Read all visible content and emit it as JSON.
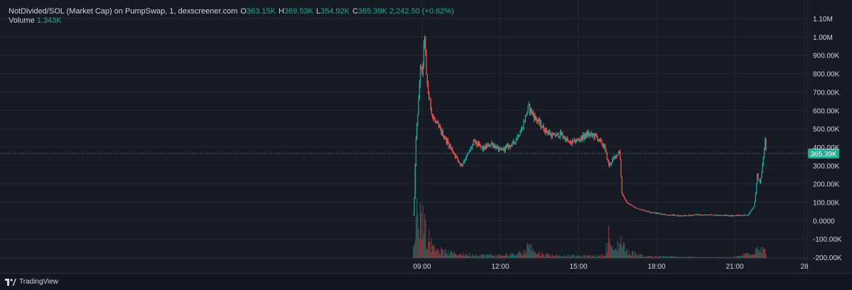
{
  "legend": {
    "title": "NotDivided/SOL (Market Cap) on PumpSwap, 1, dexscreener.com",
    "o_key": "O",
    "o_val": "363.15K",
    "h_key": "H",
    "h_val": "369.53K",
    "l_key": "L",
    "l_val": "354.92K",
    "c_key": "C",
    "c_val": "365.39K",
    "change": "2,242.50 (+0.62%)",
    "volume_label": "Volume",
    "volume_val": "1.343K"
  },
  "footer": {
    "brand": "TradingView"
  },
  "colors": {
    "background": "#161a25",
    "grid": "#232733",
    "up": "#26a69a",
    "down": "#ef5350",
    "price_tag": "#22ab94",
    "text": "#d1d4dc"
  },
  "chart_data": {
    "type": "candlestick",
    "title": "NotDivided/SOL (Market Cap) on PumpSwap, 1, dexscreener.com",
    "interval": "1",
    "y_ticks": [
      "1.10M",
      "1.00M",
      "900.00K",
      "800.00K",
      "700.00K",
      "600.00K",
      "500.00K",
      "400.00K",
      "300.00K",
      "200.00K",
      "100.00K",
      "0.0000",
      "-100.00K",
      "-200.00K"
    ],
    "x_ticks": [
      "09:00",
      "12:00",
      "15:00",
      "18:00",
      "21:00",
      "28"
    ],
    "ylim": [
      -200000,
      1100000
    ],
    "last_price": 365390,
    "last_price_label": "365.39K",
    "grid": true,
    "price_path": [
      [
        "08:40",
        30000
      ],
      [
        "08:42",
        120000
      ],
      [
        "08:45",
        400000
      ],
      [
        "08:48",
        520000
      ],
      [
        "08:52",
        650000
      ],
      [
        "08:56",
        850000
      ],
      [
        "09:00",
        780000
      ],
      [
        "09:04",
        940000
      ],
      [
        "09:06",
        1010000
      ],
      [
        "09:10",
        780000
      ],
      [
        "09:15",
        680000
      ],
      [
        "09:25",
        560000
      ],
      [
        "09:40",
        500000
      ],
      [
        "10:00",
        420000
      ],
      [
        "10:15",
        360000
      ],
      [
        "10:30",
        300000
      ],
      [
        "10:45",
        360000
      ],
      [
        "11:00",
        430000
      ],
      [
        "11:20",
        390000
      ],
      [
        "11:40",
        420000
      ],
      [
        "12:00",
        380000
      ],
      [
        "12:30",
        420000
      ],
      [
        "12:50",
        500000
      ],
      [
        "13:05",
        620000
      ],
      [
        "13:20",
        560000
      ],
      [
        "13:40",
        500000
      ],
      [
        "14:00",
        460000
      ],
      [
        "14:20",
        470000
      ],
      [
        "14:40",
        420000
      ],
      [
        "15:00",
        440000
      ],
      [
        "15:20",
        470000
      ],
      [
        "15:40",
        460000
      ],
      [
        "16:00",
        400000
      ],
      [
        "16:10",
        300000
      ],
      [
        "16:25",
        350000
      ],
      [
        "16:35",
        380000
      ],
      [
        "16:40",
        150000
      ],
      [
        "16:50",
        100000
      ],
      [
        "17:10",
        70000
      ],
      [
        "17:40",
        50000
      ],
      [
        "18:00",
        40000
      ],
      [
        "18:30",
        30000
      ],
      [
        "19:00",
        25000
      ],
      [
        "19:30",
        32000
      ],
      [
        "20:00",
        30000
      ],
      [
        "20:30",
        28000
      ],
      [
        "21:00",
        27000
      ],
      [
        "21:30",
        30000
      ],
      [
        "21:45",
        80000
      ],
      [
        "21:52",
        250000
      ],
      [
        "21:58",
        200000
      ],
      [
        "22:04",
        300000
      ],
      [
        "22:10",
        440000
      ],
      [
        "22:13",
        365390
      ]
    ],
    "volume_bars": [
      [
        "08:40",
        12
      ],
      [
        "08:45",
        55
      ],
      [
        "08:50",
        80
      ],
      [
        "08:55",
        62
      ],
      [
        "09:00",
        70
      ],
      [
        "09:05",
        55
      ],
      [
        "09:10",
        35
      ],
      [
        "09:15",
        30
      ],
      [
        "09:20",
        22
      ],
      [
        "09:30",
        18
      ],
      [
        "09:45",
        10
      ],
      [
        "10:00",
        8
      ],
      [
        "10:30",
        6
      ],
      [
        "11:00",
        5
      ],
      [
        "12:00",
        4
      ],
      [
        "12:40",
        6
      ],
      [
        "13:00",
        12
      ],
      [
        "13:10",
        30
      ],
      [
        "13:20",
        8
      ],
      [
        "14:00",
        4
      ],
      [
        "15:00",
        3
      ],
      [
        "16:00",
        4
      ],
      [
        "16:10",
        35
      ],
      [
        "16:20",
        8
      ],
      [
        "16:40",
        30
      ],
      [
        "16:50",
        10
      ],
      [
        "17:30",
        3
      ],
      [
        "18:30",
        2
      ],
      [
        "20:00",
        1
      ],
      [
        "21:00",
        1
      ],
      [
        "21:45",
        10
      ],
      [
        "21:55",
        20
      ],
      [
        "22:05",
        15
      ],
      [
        "22:12",
        8
      ]
    ]
  }
}
